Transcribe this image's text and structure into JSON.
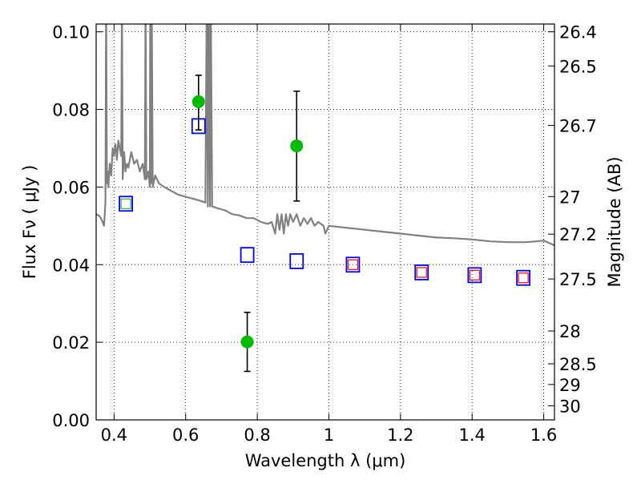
{
  "chart_data": {
    "type": "scatter",
    "title": "",
    "xlabel": "Wavelength  λ (μm)",
    "ylabel": "Flux  Fν  ( μJy )",
    "y2label": "Magnitude (AB)",
    "xlim": [
      0.35,
      1.63
    ],
    "ylim": [
      0.0,
      0.102
    ],
    "grid": true,
    "x_ticks": [
      0.4,
      0.6,
      0.8,
      1.0,
      1.2,
      1.4,
      1.6
    ],
    "x_tick_labels": [
      "0.4",
      "0.6",
      "0.8",
      "1",
      "1.2",
      "1.4",
      "1.6"
    ],
    "y_ticks": [
      0.0,
      0.02,
      0.04,
      0.06,
      0.08,
      0.1
    ],
    "y_tick_labels": [
      "0.00",
      "0.02",
      "0.04",
      "0.06",
      "0.08",
      "0.10"
    ],
    "mag_ticks": [
      {
        "mag": 26.4,
        "label": "26.4"
      },
      {
        "mag": 26.5,
        "label": "26.5"
      },
      {
        "mag": 26.7,
        "label": "26.7"
      },
      {
        "mag": 27.0,
        "label": "27"
      },
      {
        "mag": 27.2,
        "label": "27.2"
      },
      {
        "mag": 27.5,
        "label": "27.5"
      },
      {
        "mag": 28.0,
        "label": "28"
      },
      {
        "mag": 28.5,
        "label": "28.5"
      },
      {
        "mag": 29.0,
        "label": "29"
      },
      {
        "mag": 30.0,
        "label": "30"
      }
    ],
    "colors": {
      "observed": "#00bb00",
      "model_box": "#0000ff",
      "model_inner_blue": "#00aa00",
      "model_inner_red": "#ff0000",
      "spectrum": "#808080"
    },
    "observed_points": [
      {
        "x": 0.636,
        "y": 0.082,
        "err_low": 0.0747,
        "err_high": 0.0888
      },
      {
        "x": 0.772,
        "y": 0.0201,
        "err_low": 0.0125,
        "err_high": 0.0277
      },
      {
        "x": 0.91,
        "y": 0.0706,
        "err_low": 0.0564,
        "err_high": 0.0847
      }
    ],
    "model_photometry": [
      {
        "x": 0.433,
        "y": 0.0557,
        "inner": "green"
      },
      {
        "x": 0.636,
        "y": 0.0757,
        "inner": "none"
      },
      {
        "x": 0.772,
        "y": 0.0425,
        "inner": "none"
      },
      {
        "x": 0.91,
        "y": 0.0409,
        "inner": "none"
      },
      {
        "x": 1.067,
        "y": 0.04,
        "inner": "red"
      },
      {
        "x": 1.259,
        "y": 0.038,
        "inner": "red"
      },
      {
        "x": 1.407,
        "y": 0.0373,
        "inner": "red"
      },
      {
        "x": 1.543,
        "y": 0.0366,
        "inner": "red"
      }
    ],
    "spectrum": [
      [
        0.35,
        0.053
      ],
      [
        0.36,
        0.0525
      ],
      [
        0.368,
        0.051
      ],
      [
        0.372,
        0.05
      ],
      [
        0.376,
        0.056
      ],
      [
        0.378,
        0.11
      ],
      [
        0.38,
        0.061
      ],
      [
        0.382,
        0.064
      ],
      [
        0.384,
        0.06
      ],
      [
        0.388,
        0.066
      ],
      [
        0.392,
        0.063
      ],
      [
        0.396,
        0.07
      ],
      [
        0.4,
        0.068
      ],
      [
        0.404,
        0.071
      ],
      [
        0.408,
        0.067
      ],
      [
        0.412,
        0.072
      ],
      [
        0.416,
        0.07
      ],
      [
        0.42,
        0.068
      ],
      [
        0.422,
        0.11
      ],
      [
        0.424,
        0.062
      ],
      [
        0.428,
        0.069
      ],
      [
        0.432,
        0.064
      ],
      [
        0.436,
        0.066
      ],
      [
        0.44,
        0.065
      ],
      [
        0.448,
        0.069
      ],
      [
        0.456,
        0.066
      ],
      [
        0.464,
        0.067
      ],
      [
        0.472,
        0.064
      ],
      [
        0.48,
        0.066
      ],
      [
        0.486,
        0.062
      ],
      [
        0.488,
        0.11
      ],
      [
        0.49,
        0.062
      ],
      [
        0.496,
        0.064
      ],
      [
        0.5,
        0.06
      ],
      [
        0.501,
        0.11
      ],
      [
        0.503,
        0.061
      ],
      [
        0.505,
        0.11
      ],
      [
        0.508,
        0.06
      ],
      [
        0.515,
        0.063
      ],
      [
        0.525,
        0.061
      ],
      [
        0.54,
        0.06
      ],
      [
        0.56,
        0.059
      ],
      [
        0.58,
        0.058
      ],
      [
        0.6,
        0.0575
      ],
      [
        0.62,
        0.057
      ],
      [
        0.64,
        0.0565
      ],
      [
        0.655,
        0.056
      ],
      [
        0.659,
        0.11
      ],
      [
        0.662,
        0.055
      ],
      [
        0.664,
        0.11
      ],
      [
        0.668,
        0.055
      ],
      [
        0.67,
        0.11
      ],
      [
        0.674,
        0.055
      ],
      [
        0.69,
        0.0545
      ],
      [
        0.71,
        0.054
      ],
      [
        0.73,
        0.053
      ],
      [
        0.75,
        0.0527
      ],
      [
        0.77,
        0.052
      ],
      [
        0.79,
        0.052
      ],
      [
        0.81,
        0.051
      ],
      [
        0.83,
        0.0505
      ],
      [
        0.84,
        0.051
      ],
      [
        0.85,
        0.048
      ],
      [
        0.856,
        0.053
      ],
      [
        0.862,
        0.049
      ],
      [
        0.868,
        0.053
      ],
      [
        0.874,
        0.048
      ],
      [
        0.88,
        0.053
      ],
      [
        0.886,
        0.05
      ],
      [
        0.892,
        0.053
      ],
      [
        0.9,
        0.051
      ],
      [
        0.91,
        0.053
      ],
      [
        0.92,
        0.05
      ],
      [
        0.93,
        0.052
      ],
      [
        0.94,
        0.0505
      ],
      [
        0.95,
        0.052
      ],
      [
        0.96,
        0.05
      ],
      [
        0.97,
        0.051
      ],
      [
        0.985,
        0.05
      ],
      [
        0.99,
        0.048
      ],
      [
        1.0,
        0.05
      ],
      [
        1.05,
        0.0495
      ],
      [
        1.1,
        0.049
      ],
      [
        1.15,
        0.0485
      ],
      [
        1.2,
        0.048
      ],
      [
        1.25,
        0.0475
      ],
      [
        1.3,
        0.047
      ],
      [
        1.35,
        0.0468
      ],
      [
        1.4,
        0.0465
      ],
      [
        1.45,
        0.046
      ],
      [
        1.5,
        0.0458
      ],
      [
        1.55,
        0.0458
      ],
      [
        1.58,
        0.046
      ],
      [
        1.6,
        0.0462
      ],
      [
        1.63,
        0.045
      ]
    ]
  }
}
